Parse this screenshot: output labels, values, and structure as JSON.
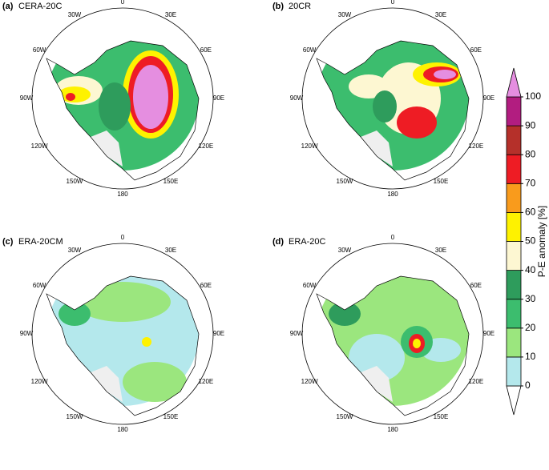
{
  "panels": [
    {
      "label": "(a)",
      "title": "CERA-20C"
    },
    {
      "label": "(b)",
      "title": "20CR"
    },
    {
      "label": "(c)",
      "title": "ERA-20CM"
    },
    {
      "label": "(d)",
      "title": "ERA-20C"
    }
  ],
  "longitude_labels": [
    "0",
    "30E",
    "60E",
    "90E",
    "120E",
    "150E",
    "180",
    "150W",
    "120W",
    "90W",
    "60W",
    "30W"
  ],
  "colorbar": {
    "label": "P-E anomaly [%]",
    "ticks": [
      0,
      10,
      20,
      30,
      40,
      50,
      60,
      70,
      80,
      90,
      100
    ],
    "colors": [
      "#ffffff",
      "#b4e8ec",
      "#9be67e",
      "#3cbd6e",
      "#2e9c5c",
      "#fdf7d2",
      "#fef200",
      "#f99b1c",
      "#ee1c24",
      "#b5302a",
      "#b21d80",
      "#e58ee0"
    ]
  }
}
